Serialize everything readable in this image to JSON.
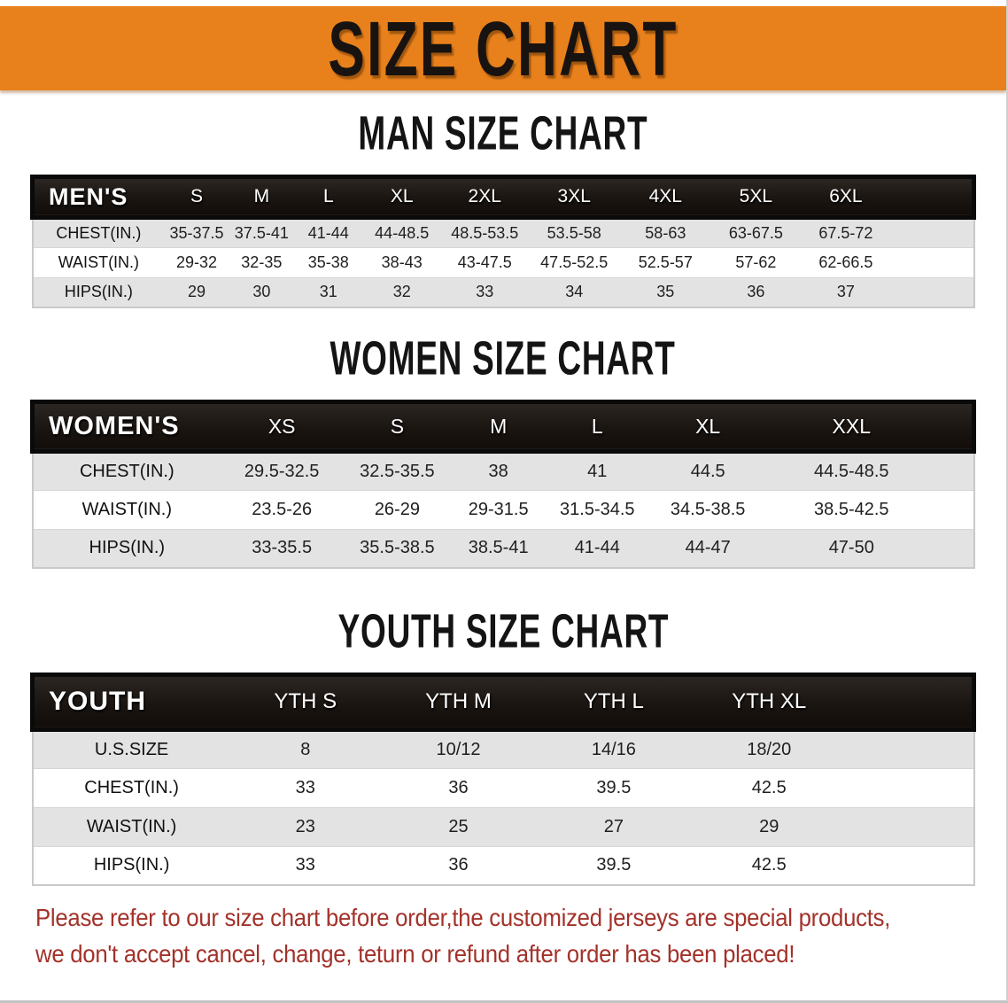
{
  "banner": {
    "title": "SIZE CHART",
    "bg": "#E8811C",
    "text_color": "#181310"
  },
  "sections": [
    {
      "heading": "MAN SIZE CHART",
      "table": {
        "label": "MEN'S",
        "columns": [
          "S",
          "M",
          "L",
          "XL",
          "2XL",
          "3XL",
          "4XL",
          "5XL",
          "6XL"
        ],
        "rows": [
          {
            "label": "CHEST(IN.)",
            "values": [
              "35-37.5",
              "37.5-41",
              "41-44",
              "44-48.5",
              "48.5-53.5",
              "53.5-58",
              "58-63",
              "63-67.5",
              "67.5-72"
            ]
          },
          {
            "label": "WAIST(IN.)",
            "values": [
              "29-32",
              "32-35",
              "35-38",
              "38-43",
              "43-47.5",
              "47.5-52.5",
              "52.5-57",
              "57-62",
              "62-66.5"
            ]
          },
          {
            "label": "HIPS(IN.)",
            "values": [
              "29",
              "30",
              "31",
              "32",
              "33",
              "34",
              "35",
              "36",
              "37"
            ]
          }
        ]
      }
    },
    {
      "heading": "WOMEN SIZE CHART",
      "table": {
        "label": "WOMEN'S",
        "columns": [
          "XS",
          "S",
          "M",
          "L",
          "XL",
          "XXL"
        ],
        "rows": [
          {
            "label": "CHEST(IN.)",
            "values": [
              "29.5-32.5",
              "32.5-35.5",
              "38",
              "41",
              "44.5",
              "44.5-48.5"
            ]
          },
          {
            "label": "WAIST(IN.)",
            "values": [
              "23.5-26",
              "26-29",
              "29-31.5",
              "31.5-34.5",
              "34.5-38.5",
              "38.5-42.5"
            ]
          },
          {
            "label": "HIPS(IN.)",
            "values": [
              "33-35.5",
              "35.5-38.5",
              "38.5-41",
              "41-44",
              "44-47",
              "47-50"
            ]
          }
        ]
      }
    },
    {
      "heading": "YOUTH SIZE CHART",
      "table": {
        "label": "YOUTH",
        "columns": [
          "YTH S",
          "YTH M",
          "YTH L",
          "YTH XL"
        ],
        "rows": [
          {
            "label": "U.S.SIZE",
            "values": [
              "8",
              "10/12",
              "14/16",
              "18/20"
            ]
          },
          {
            "label": "CHEST(IN.)",
            "values": [
              "33",
              "36",
              "39.5",
              "42.5"
            ]
          },
          {
            "label": "WAIST(IN.)",
            "values": [
              "23",
              "25",
              "27",
              "29"
            ]
          },
          {
            "label": "HIPS(IN.)",
            "values": [
              "33",
              "36",
              "39.5",
              "42.5"
            ]
          }
        ]
      }
    }
  ],
  "disclaimer": {
    "line1": "Please refer to our size chart before order,the customized jerseys are special products,",
    "line2": "we don't accept cancel, change, teturn or refund after order has been placed!",
    "color": "#A3322A"
  },
  "colors": {
    "header_bar": "#1B1511",
    "stripe": "#E3E3E3",
    "table_border": "#C9C9C9"
  }
}
